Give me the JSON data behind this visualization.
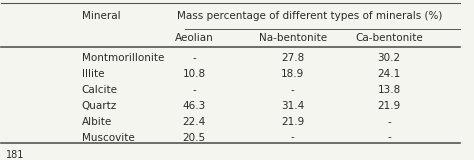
{
  "title_col1": "Mineral",
  "title_col2": "Mass percentage of different types of minerals (%)",
  "sub_headers": [
    "Aeolian",
    "Na-bentonite",
    "Ca-bentonite"
  ],
  "rows": [
    [
      "Montmorillonite",
      "-",
      "27.8",
      "30.2"
    ],
    [
      "Illite",
      "10.8",
      "18.9",
      "24.1"
    ],
    [
      "Calcite",
      "-",
      "-",
      "13.8"
    ],
    [
      "Quartz",
      "46.3",
      "31.4",
      "21.9"
    ],
    [
      "Albite",
      "22.4",
      "21.9",
      "-"
    ],
    [
      "Muscovite",
      "20.5",
      "-",
      "-"
    ]
  ],
  "footer": "181",
  "bg_color": "#f5f5f0",
  "text_color": "#2a2a2a",
  "line_color": "#555555",
  "font_size": 7.5
}
